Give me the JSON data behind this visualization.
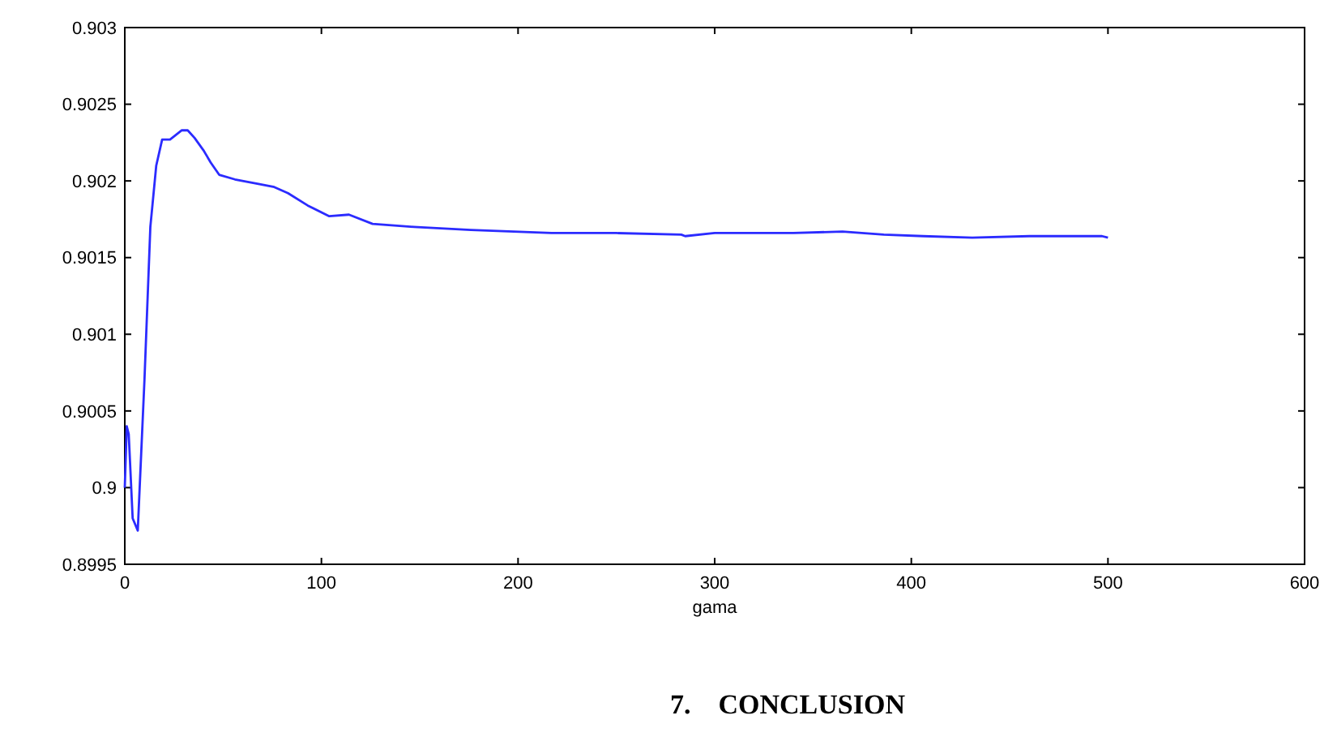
{
  "chart_data": {
    "type": "line",
    "xlabel": "gama",
    "annotations": [
      "7.    CONCLUSION"
    ],
    "xlim": [
      0,
      600
    ],
    "xticks": [
      0,
      100,
      200,
      300,
      400,
      500,
      600
    ],
    "ylim": [
      0.8995,
      0.903
    ],
    "yticks": [
      0.8995,
      0.9,
      0.9005,
      0.901,
      0.9015,
      0.902,
      0.9025,
      0.903
    ],
    "grid": false,
    "marker": "none",
    "line_style": "solid",
    "series": [
      {
        "color": "#2b2bff",
        "x": [
          0,
          1,
          2,
          4,
          6.6,
          10,
          13,
          16,
          19,
          23,
          26,
          29,
          32,
          35.5,
          40,
          43.7,
          48,
          56,
          68,
          76,
          83,
          93,
          104,
          114,
          126,
          147,
          176,
          217,
          250,
          283,
          285,
          300,
          340,
          365,
          386,
          406,
          431,
          460,
          497,
          500
        ],
        "values": [
          0.9,
          0.9004,
          0.90035,
          0.8998,
          0.89972,
          0.9007,
          0.9017,
          0.9021,
          0.90227,
          0.90227,
          0.9023,
          0.90233,
          0.90233,
          0.90228,
          0.9022,
          0.90212,
          0.90204,
          0.90201,
          0.90198,
          0.90196,
          0.90192,
          0.90184,
          0.90177,
          0.90178,
          0.90172,
          0.9017,
          0.90168,
          0.90166,
          0.90166,
          0.90165,
          0.90164,
          0.90166,
          0.90166,
          0.90167,
          0.90165,
          0.90164,
          0.90163,
          0.90164,
          0.90164,
          0.90163
        ]
      }
    ]
  }
}
